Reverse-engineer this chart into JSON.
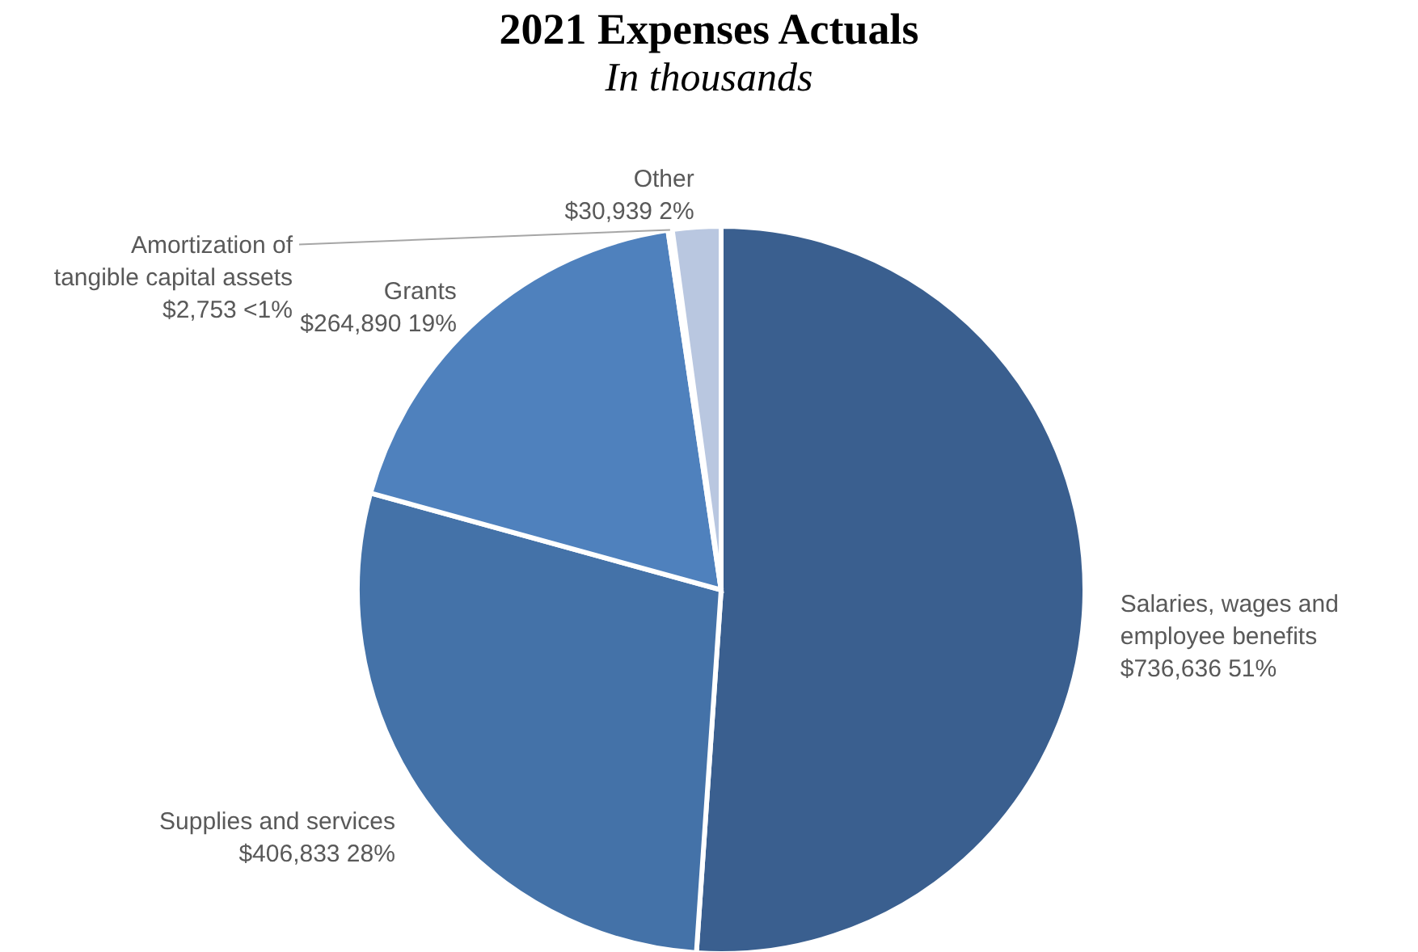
{
  "chart_data": {
    "type": "pie",
    "title": "2021 Expenses Actuals",
    "subtitle": "In thousands",
    "categories": [
      "Salaries, wages and employee benefits",
      "Supplies and services",
      "Grants",
      "Amortization of tangible capital assets",
      "Other"
    ],
    "values": [
      736636,
      406833,
      264890,
      2753,
      30939
    ],
    "value_labels": [
      "$736,636  51%",
      "$406,833  28%",
      "$264,890  19%",
      "$2,753  <1%",
      "$30,939  2%"
    ],
    "colors": [
      "#3a5f8f",
      "#4472a8",
      "#4f81bd",
      "#e9eef6",
      "#b9c7e0"
    ],
    "legend": false
  }
}
